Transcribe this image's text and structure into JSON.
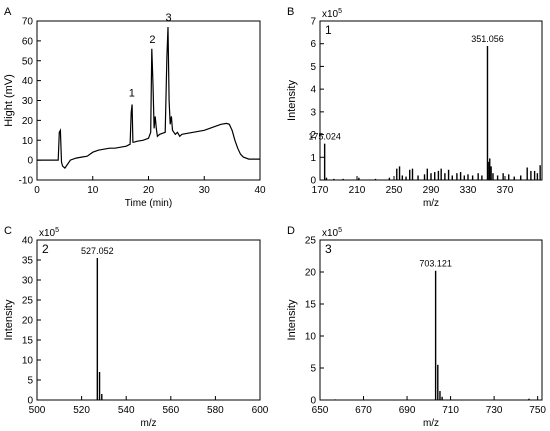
{
  "chart_data": [
    {
      "id": "A",
      "type": "line",
      "panel_label": "A",
      "xlabel": "Time (min)",
      "ylabel": "Hight (mV)",
      "xlim": [
        0,
        40
      ],
      "ylim": [
        -10,
        70
      ],
      "xticks": [
        0,
        10,
        20,
        30,
        40
      ],
      "yticks": [
        -10,
        0,
        10,
        20,
        30,
        40,
        50,
        60,
        70
      ],
      "peak_labels": [
        {
          "text": "1",
          "x": 17.0,
          "y": 30
        },
        {
          "text": "2",
          "x": 20.7,
          "y": 57
        },
        {
          "text": "3",
          "x": 23.6,
          "y": 68
        }
      ],
      "series": [
        {
          "x": [
            0,
            3.8,
            4.0,
            4.2,
            4.4,
            4.6,
            5.0,
            6.0,
            7.0,
            8.0,
            9.0,
            10.0,
            11.0,
            12.0,
            13.0,
            14.0,
            15.0,
            16.0,
            16.7,
            16.9,
            17.05,
            17.2,
            17.4,
            18.0,
            19.0,
            20.0,
            20.4,
            20.6,
            20.8,
            21.0,
            21.2,
            21.4,
            21.6,
            22.0,
            23.0,
            23.3,
            23.5,
            23.7,
            23.9,
            24.1,
            24.3,
            24.8,
            25.2,
            25.6,
            26.0,
            28.0,
            30.0,
            32.0,
            33.0,
            34.0,
            34.5,
            35.0,
            35.5,
            36.0,
            36.5,
            37.0,
            38.0,
            39.0,
            40.0
          ],
          "y": [
            0,
            0,
            14,
            15,
            -1,
            -3,
            -4,
            0,
            1,
            1.5,
            2,
            4,
            5,
            5.5,
            6,
            6,
            6.5,
            7,
            8,
            24,
            28,
            9,
            9,
            9.5,
            10,
            11,
            14,
            56,
            38,
            16,
            22,
            16,
            12,
            13,
            14,
            52,
            67,
            30,
            18,
            22,
            15,
            13,
            14,
            12,
            13,
            14,
            15,
            17,
            18,
            18.5,
            18,
            15,
            10,
            6,
            3,
            1.5,
            0.5,
            0.5,
            0.5
          ]
        }
      ]
    },
    {
      "id": "B",
      "type": "bar",
      "panel_label": "B",
      "inner_label": "1",
      "xlabel": "m/z",
      "ylabel": "Intensity",
      "scale_label": "x10",
      "scale_exp": "5",
      "xlim": [
        170,
        410
      ],
      "ylim": [
        0,
        7
      ],
      "xticks": [
        170,
        210,
        250,
        290,
        330,
        370
      ],
      "yticks": [
        0,
        1,
        2,
        3,
        4,
        5,
        6,
        7
      ],
      "peak_labels": [
        {
          "text": "175.024",
          "x": 175.024,
          "y": 1.6
        },
        {
          "text": "351.056",
          "x": 351.056,
          "y": 5.9
        }
      ],
      "peaks": [
        {
          "x": 175.024,
          "y": 1.6
        },
        {
          "x": 177,
          "y": 0.1
        },
        {
          "x": 185,
          "y": 0.05
        },
        {
          "x": 195,
          "y": 0.05
        },
        {
          "x": 212,
          "y": 0.1
        },
        {
          "x": 230,
          "y": 0.05
        },
        {
          "x": 245,
          "y": 0.1
        },
        {
          "x": 253,
          "y": 0.5
        },
        {
          "x": 256,
          "y": 0.6
        },
        {
          "x": 259,
          "y": 0.2
        },
        {
          "x": 263,
          "y": 0.15
        },
        {
          "x": 267,
          "y": 0.45
        },
        {
          "x": 270,
          "y": 0.5
        },
        {
          "x": 276,
          "y": 0.2
        },
        {
          "x": 283,
          "y": 0.25
        },
        {
          "x": 286,
          "y": 0.5
        },
        {
          "x": 290,
          "y": 0.3
        },
        {
          "x": 294,
          "y": 0.35
        },
        {
          "x": 298,
          "y": 0.4
        },
        {
          "x": 301,
          "y": 0.5
        },
        {
          "x": 305,
          "y": 0.3
        },
        {
          "x": 309,
          "y": 0.45
        },
        {
          "x": 313,
          "y": 0.2
        },
        {
          "x": 318,
          "y": 0.3
        },
        {
          "x": 322,
          "y": 0.35
        },
        {
          "x": 326,
          "y": 0.2
        },
        {
          "x": 330,
          "y": 0.25
        },
        {
          "x": 335,
          "y": 0.2
        },
        {
          "x": 341,
          "y": 0.3
        },
        {
          "x": 345,
          "y": 0.2
        },
        {
          "x": 351.056,
          "y": 5.9
        },
        {
          "x": 352.5,
          "y": 0.8
        },
        {
          "x": 353.5,
          "y": 0.95
        },
        {
          "x": 355,
          "y": 0.6
        },
        {
          "x": 357,
          "y": 0.3
        },
        {
          "x": 362,
          "y": 0.2
        },
        {
          "x": 368,
          "y": 0.3
        },
        {
          "x": 374,
          "y": 0.25
        },
        {
          "x": 380,
          "y": 0.15
        },
        {
          "x": 387,
          "y": 0.2
        },
        {
          "x": 394,
          "y": 0.55
        },
        {
          "x": 398,
          "y": 0.4
        },
        {
          "x": 402,
          "y": 0.4
        },
        {
          "x": 405,
          "y": 0.3
        },
        {
          "x": 408,
          "y": 0.65
        }
      ]
    },
    {
      "id": "C",
      "type": "bar",
      "panel_label": "C",
      "inner_label": "2",
      "xlabel": "m/z",
      "ylabel": "Intensity",
      "scale_label": "x10",
      "scale_exp": "5",
      "xlim": [
        500,
        600
      ],
      "ylim": [
        0,
        40
      ],
      "xticks": [
        500,
        520,
        540,
        560,
        580,
        600
      ],
      "yticks": [
        0,
        5,
        10,
        15,
        20,
        25,
        30,
        35,
        40
      ],
      "peak_labels": [
        {
          "text": "527.052",
          "x": 527.052,
          "y": 35.5
        }
      ],
      "peaks": [
        {
          "x": 527.052,
          "y": 35.5
        },
        {
          "x": 528.05,
          "y": 7.0
        },
        {
          "x": 529.05,
          "y": 1.5
        }
      ]
    },
    {
      "id": "D",
      "type": "bar",
      "panel_label": "D",
      "inner_label": "3",
      "xlabel": "m/z",
      "ylabel": "Intensity",
      "scale_label": "x10",
      "scale_exp": "5",
      "xlim": [
        650,
        752
      ],
      "ylim": [
        0,
        25
      ],
      "xticks": [
        650,
        670,
        690,
        710,
        730,
        750
      ],
      "yticks": [
        0,
        5,
        10,
        15,
        20,
        25
      ],
      "peak_labels": [
        {
          "text": "703.121",
          "x": 703.121,
          "y": 20.2
        }
      ],
      "peaks": [
        {
          "x": 657,
          "y": 0.1
        },
        {
          "x": 703.121,
          "y": 20.2
        },
        {
          "x": 704.12,
          "y": 5.5
        },
        {
          "x": 705.12,
          "y": 1.4
        },
        {
          "x": 706.1,
          "y": 0.5
        },
        {
          "x": 746,
          "y": 0.2
        }
      ]
    }
  ]
}
